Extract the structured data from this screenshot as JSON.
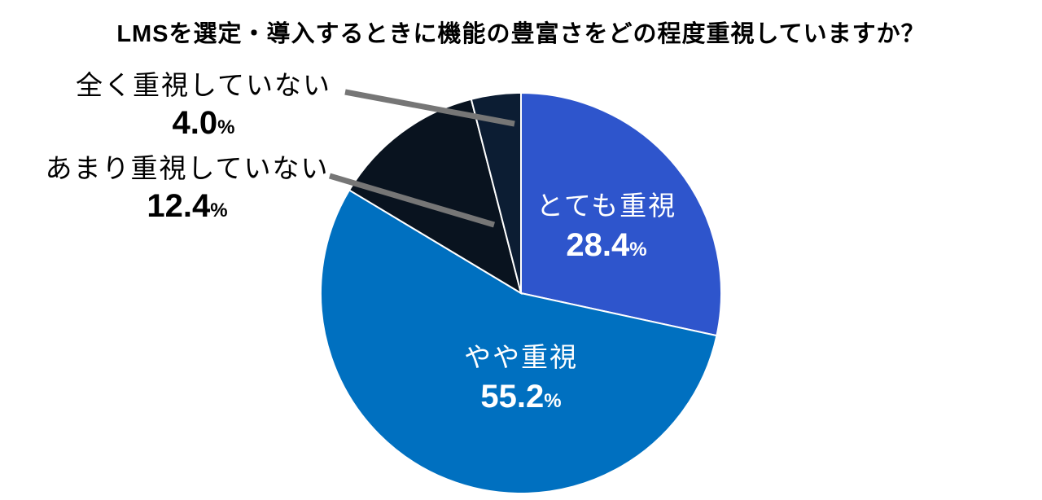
{
  "chart_data": {
    "type": "pie",
    "title": "LMSを選定・導入するときに機能の豊富さをどの程度重視していますか？",
    "unit": "%",
    "slices": [
      {
        "label": "とても重視",
        "value": 28.4,
        "value_text": "28.4",
        "color": "#2E55CC",
        "label_color": "#FFFFFF"
      },
      {
        "label": "やや重視",
        "value": 55.2,
        "value_text": "55.2",
        "color": "#0070C0",
        "label_color": "#FFFFFF"
      },
      {
        "label": "あまり重視していない",
        "value": 12.4,
        "value_text": "12.4",
        "color": "#09131F",
        "label_color": "#000000"
      },
      {
        "label": "全く重視していない",
        "value": 4.0,
        "value_text": "4.0",
        "color": "#0C1D33",
        "label_color": "#000000"
      }
    ],
    "start_angle": "12 o'clock, clockwise",
    "leader_line_color": "#767676",
    "legend": "none (labels on/near slices)"
  },
  "percent_sign": "%"
}
